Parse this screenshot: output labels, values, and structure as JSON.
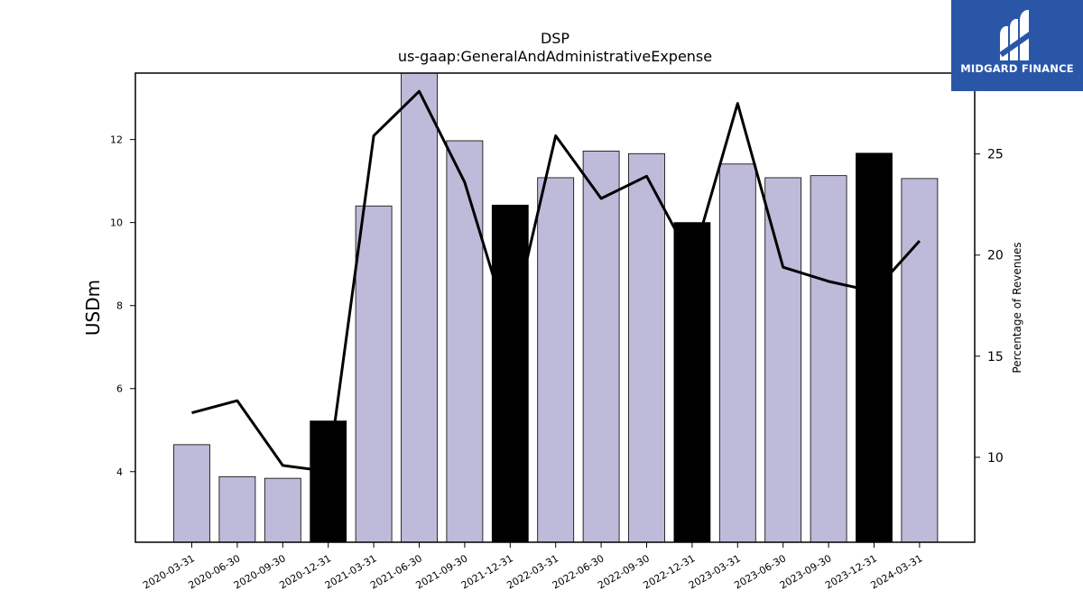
{
  "chart_data": {
    "type": "bar",
    "title": "DSP",
    "subtitle": "us-gaap:GeneralAndAdministrativeExpense",
    "ylabel": "USDm",
    "y2label": "Percentage of Revenues",
    "ylim": [
      2.3,
      13.6
    ],
    "y2lim": [
      5.8,
      29.0
    ],
    "yticks": [
      4,
      6,
      8,
      10,
      12
    ],
    "y2ticks": [
      10,
      15,
      20,
      25
    ],
    "categories": [
      "2020-03-31",
      "2020-06-30",
      "2020-09-30",
      "2020-12-31",
      "2021-03-31",
      "2021-06-30",
      "2021-09-30",
      "2021-12-31",
      "2022-03-31",
      "2022-06-30",
      "2022-09-30",
      "2022-12-31",
      "2023-03-31",
      "2023-06-30",
      "2023-09-30",
      "2023-12-31",
      "2024-03-31"
    ],
    "series": [
      {
        "kind": "bar",
        "values": [
          4.65,
          3.88,
          3.84,
          5.22,
          10.4,
          13.8,
          11.97,
          10.42,
          11.08,
          11.72,
          11.66,
          10.0,
          11.41,
          11.08,
          11.13,
          11.67,
          11.06
        ],
        "highlight": [
          false,
          false,
          false,
          true,
          false,
          false,
          false,
          true,
          false,
          false,
          false,
          true,
          false,
          false,
          false,
          true,
          false
        ]
      },
      {
        "kind": "line",
        "axis": "right",
        "values": [
          12.2,
          12.8,
          9.6,
          9.3,
          25.9,
          28.1,
          23.6,
          16.2,
          25.9,
          22.8,
          23.9,
          19.7,
          27.5,
          19.4,
          18.7,
          18.2,
          20.7
        ]
      }
    ],
    "colors": {
      "bar": "#bebad9",
      "highlight": "#000000",
      "line": "#000000"
    }
  },
  "logo": {
    "text": "MIDGARD FINANCE",
    "bg": "#2a56a8"
  }
}
